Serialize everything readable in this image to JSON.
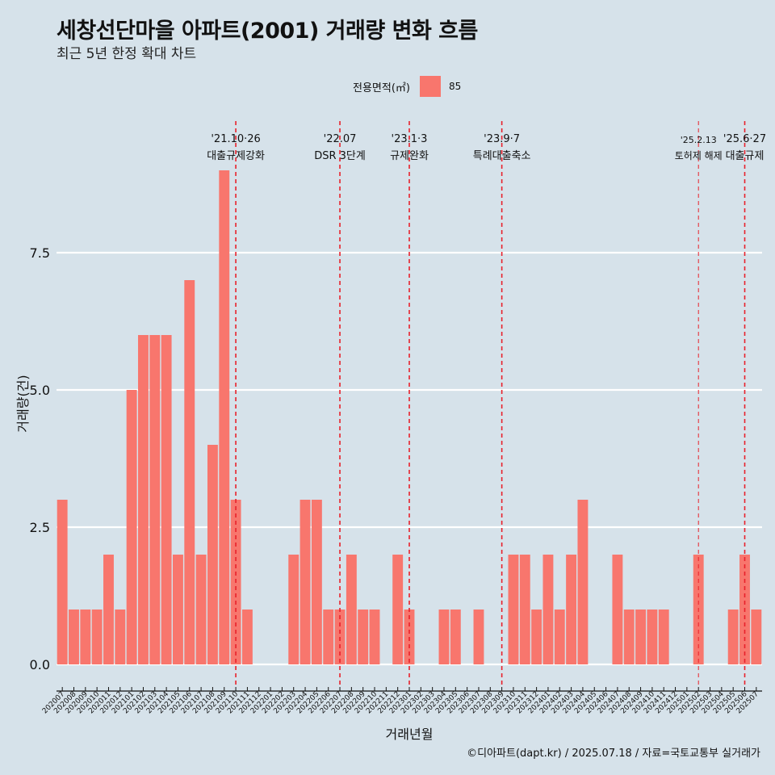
{
  "title": "세창선단마을 아파트(2001) 거래량 변화 흐름",
  "subtitle": "최근 5년 한정 확대 차트",
  "legend": {
    "title": "전용면적(㎡)",
    "items": [
      {
        "label": "85",
        "color": "#f8766d"
      }
    ]
  },
  "caption": "©디아파트(dapt.kr) / 2025.07.18 / 자료=국토교통부 실거래가",
  "chart_data": {
    "type": "bar",
    "xlabel": "거래년월",
    "ylabel": "거래량(건)",
    "ylim": [
      0,
      9.3
    ],
    "yticks": [
      0.0,
      2.5,
      5.0,
      7.5
    ],
    "ytick_labels": [
      "0.0",
      "2.5",
      "5.0",
      "7.5"
    ],
    "bar_color": "#f8766d",
    "grid": "horizontal major lines",
    "legend_position": "top",
    "categories": [
      "202007",
      "202008",
      "202009",
      "202010",
      "202011",
      "202012",
      "202101",
      "202102",
      "202103",
      "202104",
      "202105",
      "202106",
      "202107",
      "202108",
      "202109",
      "202110",
      "202111",
      "202112",
      "202201",
      "202202",
      "202203",
      "202204",
      "202205",
      "202206",
      "202207",
      "202208",
      "202209",
      "202210",
      "202211",
      "202212",
      "202301",
      "202302",
      "202303",
      "202304",
      "202305",
      "202306",
      "202307",
      "202308",
      "202309",
      "202310",
      "202311",
      "202312",
      "202401",
      "202402",
      "202403",
      "202404",
      "202405",
      "202406",
      "202407",
      "202408",
      "202409",
      "202410",
      "202411",
      "202412",
      "202501",
      "202502",
      "202503",
      "202504",
      "202505",
      "202506",
      "202507"
    ],
    "series": [
      {
        "values": [
          3,
          1,
          1,
          1,
          2,
          1,
          5,
          6,
          6,
          6,
          2,
          7,
          2,
          4,
          9,
          3,
          1,
          0,
          0,
          0,
          2,
          3,
          3,
          1,
          1,
          2,
          1,
          1,
          0,
          2,
          1,
          0,
          0,
          1,
          1,
          0,
          1,
          0,
          0,
          2,
          2,
          1,
          2,
          1,
          2,
          3,
          0,
          0,
          2,
          1,
          1,
          1,
          1,
          0,
          0,
          2,
          0,
          0,
          1,
          2,
          1
        ]
      }
    ],
    "annotations": [
      {
        "category": "202110",
        "date": "'21.10·26",
        "label": "대출규제강화"
      },
      {
        "category": "202207",
        "date": "'22.07",
        "label": "DSR 3단계"
      },
      {
        "category": "202301",
        "date": "'23.1·3",
        "label": "규제완화"
      },
      {
        "category": "202309",
        "date": "'23.9·7",
        "label": "특례대출축소"
      },
      {
        "category": "202502",
        "date": "'25.2.13",
        "label": "토허제 해제"
      },
      {
        "category": "202506",
        "date": "'25.6·27",
        "label": "대출규제"
      }
    ]
  }
}
